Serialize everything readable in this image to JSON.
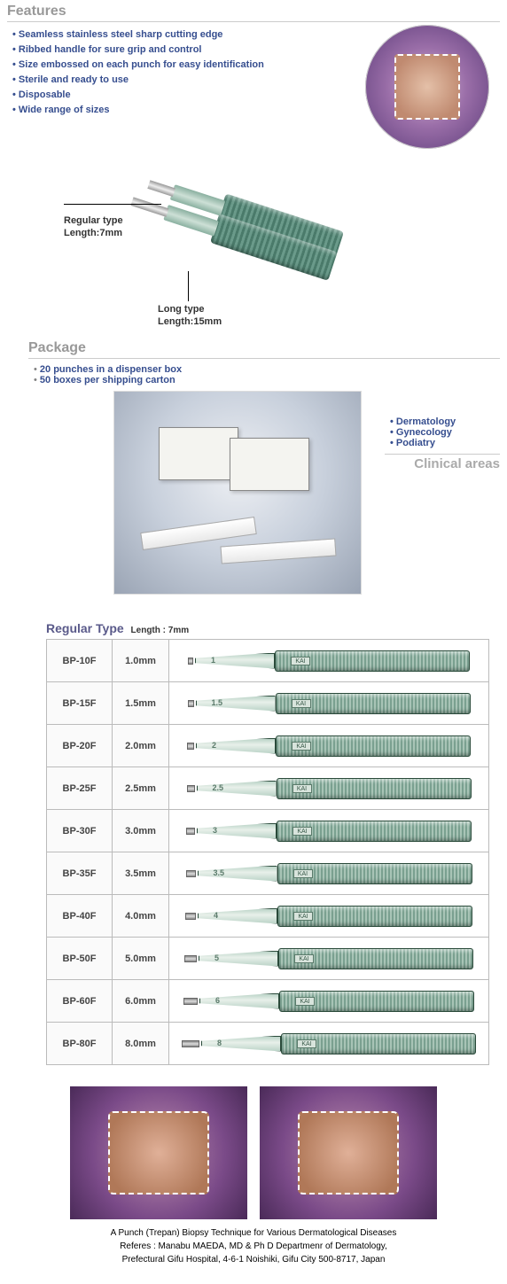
{
  "features": {
    "title": "Features",
    "items": [
      "Seamless stainless steel sharp cutting edge",
      "Ribbed handle for sure grip and control",
      "Size embossed on each punch for easy identification",
      "Sterile and ready to use",
      "Disposable",
      "Wide range of sizes"
    ]
  },
  "toolDiagram": {
    "regularLabel": "Regular type",
    "regularLength": "Length:7mm",
    "longLabel": "Long type",
    "longLength": "Length:15mm"
  },
  "package": {
    "title": "Package",
    "items": [
      "20 punches in a dispenser box",
      "50 boxes per shipping carton"
    ]
  },
  "clinicalAreas": {
    "title": "Clinical areas",
    "items": [
      "Dermatology",
      "Gynecology",
      "Podiatry"
    ]
  },
  "specTable": {
    "title": "Regular Type",
    "subtitle": "Length : 7mm",
    "rows": [
      {
        "code": "BP-10F",
        "size": "1.0mm",
        "sizeLabel": "1",
        "tipW": 6
      },
      {
        "code": "BP-15F",
        "size": "1.5mm",
        "sizeLabel": "1.5",
        "tipW": 7
      },
      {
        "code": "BP-20F",
        "size": "2.0mm",
        "sizeLabel": "2",
        "tipW": 8
      },
      {
        "code": "BP-25F",
        "size": "2.5mm",
        "sizeLabel": "2.5",
        "tipW": 9
      },
      {
        "code": "BP-30F",
        "size": "3.0mm",
        "sizeLabel": "3",
        "tipW": 10
      },
      {
        "code": "BP-35F",
        "size": "3.5mm",
        "sizeLabel": "3.5",
        "tipW": 11
      },
      {
        "code": "BP-40F",
        "size": "4.0mm",
        "sizeLabel": "4",
        "tipW": 12
      },
      {
        "code": "BP-50F",
        "size": "5.0mm",
        "sizeLabel": "5",
        "tipW": 14
      },
      {
        "code": "BP-60F",
        "size": "6.0mm",
        "sizeLabel": "6",
        "tipW": 16
      },
      {
        "code": "BP-80F",
        "size": "8.0mm",
        "sizeLabel": "8",
        "tipW": 20
      }
    ]
  },
  "caption": {
    "line1": "A Punch (Trepan) Biopsy Technique for Various Dermatological Diseases",
    "line2": "Referes : Manabu MAEDA, MD & Ph D Departmenr of Dermatology,",
    "line3": "Prefectural Gifu Hospital, 4-6-1 Noishiki, Gifu City 500-8717, Japan"
  },
  "colors": {
    "accentText": "#364e8f",
    "grayTitle": "#999999",
    "handleDark": "#4a7a6a",
    "handleLight": "#a8c4b6"
  }
}
